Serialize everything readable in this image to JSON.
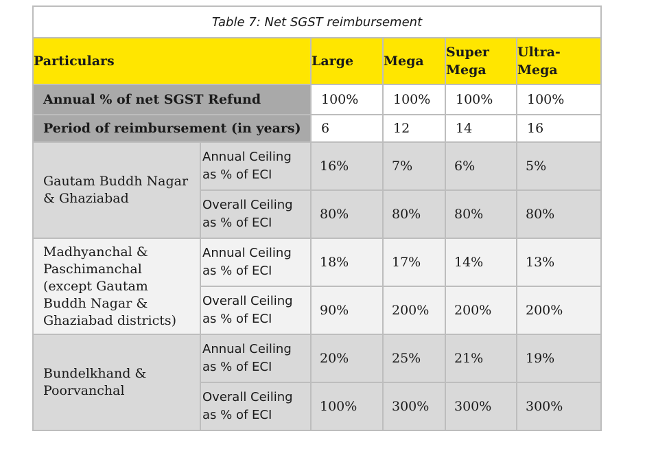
{
  "caption": "Table 7: Net SGST reimbursement",
  "header": {
    "particulars": "Particulars",
    "columns": [
      "Large",
      "Mega",
      "Super\nMega",
      "Ultra-\nMega"
    ]
  },
  "rows": {
    "refund": {
      "label": "Annual % of net SGST Refund",
      "values": [
        "100%",
        "100%",
        "100%",
        "100%"
      ]
    },
    "period": {
      "label": "Period of reimbursement (in years)",
      "values": [
        "6",
        "12",
        "14",
        "16"
      ]
    }
  },
  "regions": [
    {
      "name": "Gautam Buddh Nagar\n& Ghaziabad",
      "annual_label": "Annual Ceiling\nas % of ECI",
      "annual": [
        "16%",
        "7%",
        "6%",
        "5%"
      ],
      "overall_label": "Overall Ceiling\nas % of ECI",
      "overall": [
        "80%",
        "80%",
        "80%",
        "80%"
      ]
    },
    {
      "name": "Madhyanchal &\nPaschimanchal\n(except Gautam\nBuddh Nagar &\nGhaziabad districts)",
      "annual_label": "Annual Ceiling\nas % of ECI",
      "annual": [
        "18%",
        "17%",
        "14%",
        "13%"
      ],
      "overall_label": "Overall Ceiling\nas % of ECI",
      "overall": [
        "90%",
        "200%",
        "200%",
        "200%"
      ]
    },
    {
      "name": "Bundelkhand &\nPoorvanchal",
      "annual_label": "Annual Ceiling\nas % of ECI",
      "annual": [
        "20%",
        "25%",
        "21%",
        "19%"
      ],
      "overall_label": "Overall Ceiling\nas % of ECI",
      "overall": [
        "100%",
        "300%",
        "300%",
        "300%"
      ]
    }
  ],
  "colors": {
    "header": "#ffe600",
    "label_dark": "#a9a9a9",
    "band_a": "#d9d9d9",
    "band_b": "#f2f2f2"
  }
}
